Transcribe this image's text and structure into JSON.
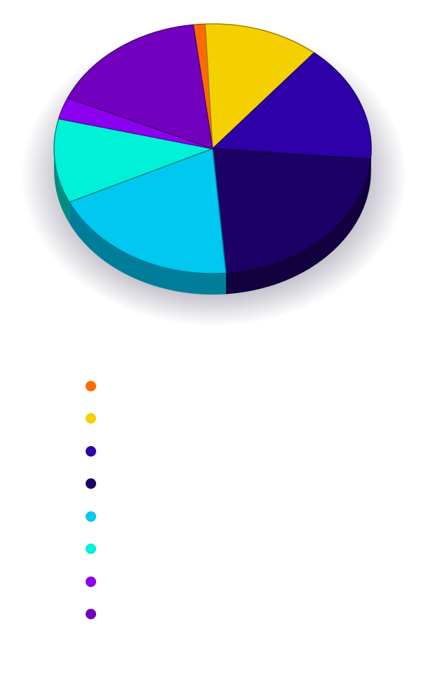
{
  "chart_data": {
    "type": "pie",
    "title": "",
    "legend_position": "bottom",
    "slices": [
      {
        "label": "",
        "value": 1.2,
        "color": "#ff6a00",
        "side_color": "#b34a00"
      },
      {
        "label": "",
        "value": 11.8,
        "color": "#f5d000",
        "side_color": "#9c8400"
      },
      {
        "label": "",
        "value": 15.3,
        "color": "#2d00a8",
        "side_color": "#1e0070"
      },
      {
        "label": "",
        "value": 22.3,
        "color": "#1c0066",
        "side_color": "#12003f"
      },
      {
        "label": "",
        "value": 19.3,
        "color": "#00c8f0",
        "side_color": "#007e99"
      },
      {
        "label": "",
        "value": 10.9,
        "color": "#00f0d8",
        "side_color": "#008c80"
      },
      {
        "label": "",
        "value": 2.8,
        "color": "#8c00f0",
        "side_color": "#5a009c"
      },
      {
        "label": "",
        "value": 16.4,
        "color": "#7400bf",
        "side_color": "#4a007a"
      }
    ]
  }
}
